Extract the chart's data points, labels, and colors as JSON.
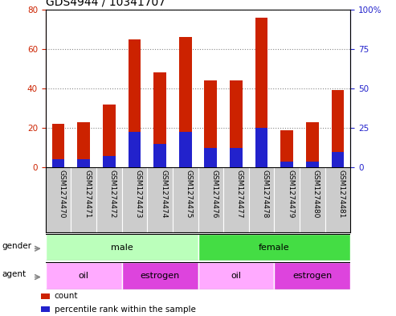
{
  "title": "GDS4944 / 10341707",
  "categories": [
    "GSM1274470",
    "GSM1274471",
    "GSM1274472",
    "GSM1274473",
    "GSM1274474",
    "GSM1274475",
    "GSM1274476",
    "GSM1274477",
    "GSM1274478",
    "GSM1274479",
    "GSM1274480",
    "GSM1274481"
  ],
  "count_values": [
    22,
    23,
    32,
    65,
    48,
    66,
    44,
    44,
    76,
    19,
    23,
    39
  ],
  "percentile_values": [
    4,
    4,
    6,
    18,
    12,
    18,
    10,
    10,
    20,
    3,
    3,
    8
  ],
  "bar_color": "#cc2200",
  "percentile_color": "#2222cc",
  "bar_width": 0.5,
  "ylim_left": [
    0,
    80
  ],
  "ylim_right": [
    0,
    100
  ],
  "yticks_left": [
    0,
    20,
    40,
    60,
    80
  ],
  "yticks_right": [
    0,
    25,
    50,
    75,
    100
  ],
  "yticklabels_right": [
    "0",
    "25",
    "50",
    "75",
    "100%"
  ],
  "title_fontsize": 10,
  "tick_fontsize": 7.5,
  "gender_groups": [
    {
      "label": "male",
      "start": 0,
      "end": 5
    },
    {
      "label": "female",
      "start": 6,
      "end": 11
    }
  ],
  "gender_colors": {
    "male": "#bbffbb",
    "female": "#44dd44"
  },
  "agent_groups": [
    {
      "label": "oil",
      "start": 0,
      "end": 2
    },
    {
      "label": "estrogen",
      "start": 3,
      "end": 5
    },
    {
      "label": "oil",
      "start": 6,
      "end": 8
    },
    {
      "label": "estrogen",
      "start": 9,
      "end": 11
    }
  ],
  "agent_colors": {
    "oil": "#ffaaff",
    "estrogen": "#dd44dd"
  },
  "legend_items": [
    {
      "label": "count",
      "color": "#cc2200"
    },
    {
      "label": "percentile rank within the sample",
      "color": "#2222cc"
    }
  ],
  "left_axis_color": "#cc2200",
  "right_axis_color": "#2222cc",
  "bg_color": "#ffffff",
  "gray_bg_color": "#cccccc"
}
